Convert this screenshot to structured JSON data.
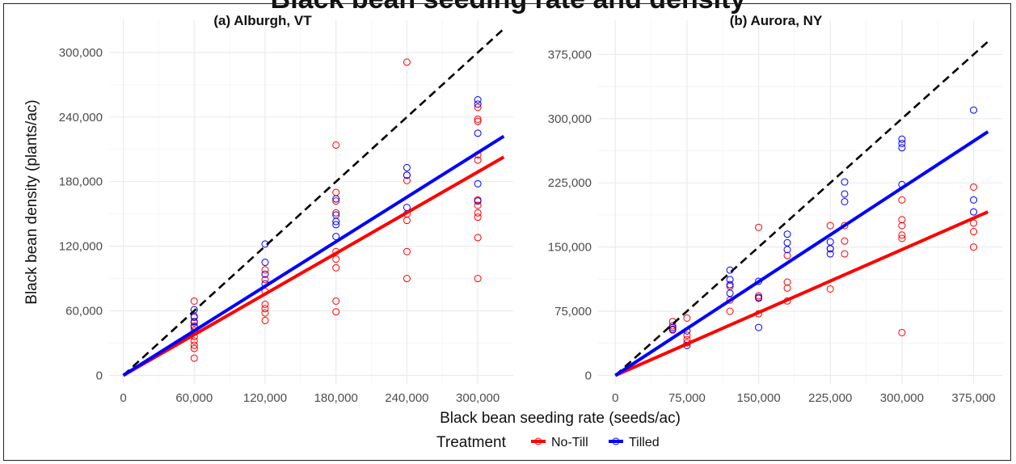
{
  "figure_title": "Black bean seeding rate and density",
  "shared_xlabel": "Black bean seeding rate (seeds/ac)",
  "shared_ylabel": "Black bean density (plants/ac)",
  "legend": {
    "title": "Treatment",
    "entries": [
      {
        "name": "No-Till",
        "color": "#ff0000"
      },
      {
        "name": "Tilled",
        "color": "#0000ff"
      }
    ]
  },
  "colors": {
    "no_till": "#ff0000",
    "tilled": "#0000ff",
    "one_to_one": "#000000",
    "grid": "#ebebeb"
  },
  "chart_data": [
    {
      "type": "scatter",
      "title": "(a) Alburgh, VT",
      "xlim": [
        -12000,
        330000
      ],
      "ylim": [
        -8000,
        330000
      ],
      "x_ticks": [
        0,
        60000,
        120000,
        180000,
        240000,
        300000
      ],
      "x_tick_labels": [
        "0",
        "60,000",
        "120,000",
        "180,000",
        "240,000",
        "300,000"
      ],
      "y_ticks": [
        0,
        60000,
        120000,
        180000,
        240000,
        300000
      ],
      "y_tick_labels": [
        "0",
        "60,000",
        "120,000",
        "180,000",
        "240,000",
        "300,000"
      ],
      "grid": true,
      "one_to_one_line": {
        "style": "dashed",
        "slope": 1,
        "x_end": 322000
      },
      "series": [
        {
          "name": "No-Till",
          "fit_slope": 0.63,
          "fit_x_end": 322000,
          "points": [
            [
              60000,
              69000
            ],
            [
              60000,
              55000
            ],
            [
              60000,
              49000
            ],
            [
              60000,
              46000
            ],
            [
              60000,
              42000
            ],
            [
              60000,
              36000
            ],
            [
              60000,
              32000
            ],
            [
              60000,
              28000
            ],
            [
              60000,
              25000
            ],
            [
              60000,
              16000
            ],
            [
              120000,
              98000
            ],
            [
              120000,
              89000
            ],
            [
              120000,
              78000
            ],
            [
              120000,
              66000
            ],
            [
              120000,
              62000
            ],
            [
              120000,
              58000
            ],
            [
              120000,
              51000
            ],
            [
              180000,
              214000
            ],
            [
              180000,
              170000
            ],
            [
              180000,
              162000
            ],
            [
              180000,
              151000
            ],
            [
              180000,
              115000
            ],
            [
              180000,
              108000
            ],
            [
              180000,
              100000
            ],
            [
              180000,
              69000
            ],
            [
              180000,
              59000
            ],
            [
              240000,
              291000
            ],
            [
              240000,
              186000
            ],
            [
              240000,
              181000
            ],
            [
              240000,
              150000
            ],
            [
              240000,
              144000
            ],
            [
              240000,
              115000
            ],
            [
              240000,
              90000
            ],
            [
              300000,
              249000
            ],
            [
              300000,
              238000
            ],
            [
              300000,
              236000
            ],
            [
              300000,
              205000
            ],
            [
              300000,
              200000
            ],
            [
              300000,
              163000
            ],
            [
              300000,
              158000
            ],
            [
              300000,
              151000
            ],
            [
              300000,
              147000
            ],
            [
              300000,
              128000
            ],
            [
              300000,
              90000
            ]
          ]
        },
        {
          "name": "Tilled",
          "fit_slope": 0.69,
          "fit_x_end": 322000,
          "points": [
            [
              60000,
              61000
            ],
            [
              60000,
              54000
            ],
            [
              60000,
              50000
            ],
            [
              60000,
              45000
            ],
            [
              120000,
              122000
            ],
            [
              120000,
              105000
            ],
            [
              120000,
              94000
            ],
            [
              120000,
              85000
            ],
            [
              180000,
              164000
            ],
            [
              180000,
              149000
            ],
            [
              180000,
              143000
            ],
            [
              180000,
              140000
            ],
            [
              180000,
              129000
            ],
            [
              240000,
              193000
            ],
            [
              240000,
              186000
            ],
            [
              240000,
              156000
            ],
            [
              300000,
              256000
            ],
            [
              300000,
              252000
            ],
            [
              300000,
              225000
            ],
            [
              300000,
              178000
            ],
            [
              300000,
              162000
            ]
          ]
        }
      ]
    },
    {
      "type": "scatter",
      "title": "(b) Aurora, NY",
      "xlim": [
        -18000,
        405000
      ],
      "ylim": [
        -10000,
        415000
      ],
      "x_ticks": [
        0,
        75000,
        150000,
        225000,
        300000,
        375000
      ],
      "x_tick_labels": [
        "0",
        "75,000",
        "150,000",
        "225,000",
        "300,000",
        "375,000"
      ],
      "y_ticks": [
        0,
        75000,
        150000,
        225000,
        300000,
        375000
      ],
      "y_tick_labels": [
        "0",
        "75,000",
        "150,000",
        "225,000",
        "300,000",
        "375,000"
      ],
      "grid": true,
      "one_to_one_line": {
        "style": "dashed",
        "slope": 1,
        "x_end": 390000
      },
      "series": [
        {
          "name": "No-Till",
          "fit_slope": 0.49,
          "fit_x_end": 390000,
          "points": [
            [
              60000,
              63000
            ],
            [
              60000,
              58000
            ],
            [
              60000,
              53000
            ],
            [
              75000,
              67000
            ],
            [
              75000,
              47000
            ],
            [
              75000,
              42000
            ],
            [
              75000,
              38000
            ],
            [
              120000,
              104000
            ],
            [
              120000,
              88000
            ],
            [
              120000,
              75000
            ],
            [
              150000,
              173000
            ],
            [
              150000,
              93000
            ],
            [
              150000,
              90000
            ],
            [
              150000,
              72000
            ],
            [
              180000,
              140000
            ],
            [
              180000,
              109000
            ],
            [
              180000,
              102000
            ],
            [
              180000,
              87000
            ],
            [
              225000,
              175000
            ],
            [
              225000,
              148000
            ],
            [
              225000,
              101000
            ],
            [
              240000,
              175000
            ],
            [
              240000,
              157000
            ],
            [
              240000,
              142000
            ],
            [
              300000,
              205000
            ],
            [
              300000,
              182000
            ],
            [
              300000,
              175000
            ],
            [
              300000,
              164000
            ],
            [
              300000,
              160000
            ],
            [
              300000,
              50000
            ],
            [
              375000,
              220000
            ],
            [
              375000,
              178000
            ],
            [
              375000,
              168000
            ],
            [
              375000,
              150000
            ]
          ]
        },
        {
          "name": "Tilled",
          "fit_slope": 0.73,
          "fit_x_end": 390000,
          "points": [
            [
              60000,
              56000
            ],
            [
              60000,
              54000
            ],
            [
              75000,
              52000
            ],
            [
              75000,
              35000
            ],
            [
              120000,
              123000
            ],
            [
              120000,
              112000
            ],
            [
              120000,
              106000
            ],
            [
              120000,
              96000
            ],
            [
              150000,
              110000
            ],
            [
              150000,
              91000
            ],
            [
              150000,
              56000
            ],
            [
              180000,
              165000
            ],
            [
              180000,
              155000
            ],
            [
              180000,
              147000
            ],
            [
              225000,
              156000
            ],
            [
              225000,
              148000
            ],
            [
              225000,
              142000
            ],
            [
              240000,
              226000
            ],
            [
              240000,
              212000
            ],
            [
              240000,
              203000
            ],
            [
              300000,
              276000
            ],
            [
              300000,
              271000
            ],
            [
              300000,
              266000
            ],
            [
              300000,
              223000
            ],
            [
              375000,
              310000
            ],
            [
              375000,
              205000
            ],
            [
              375000,
              191000
            ]
          ]
        }
      ]
    }
  ]
}
